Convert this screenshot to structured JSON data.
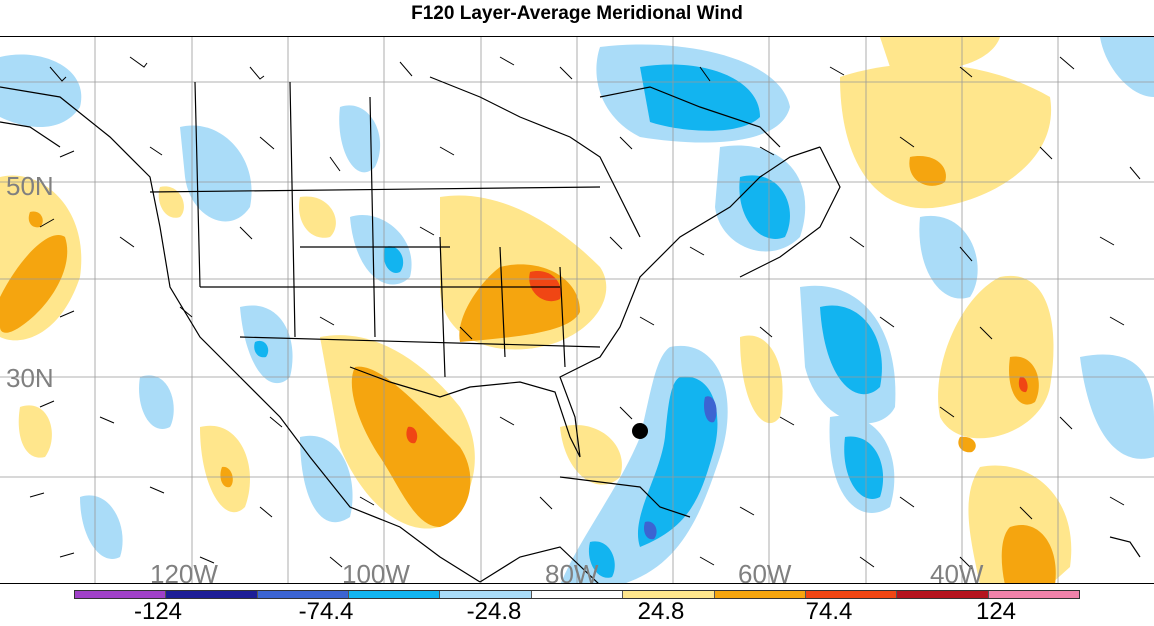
{
  "title": "F120 Layer-Average Meridional Wind",
  "map": {
    "lat_labels": [
      "50N",
      "30N"
    ],
    "lon_labels": [
      "120W",
      "100W",
      "80W",
      "60W",
      "40W"
    ],
    "marker": "storm-center-dot"
  },
  "colorbar": {
    "colors": [
      "#a040c8",
      "#1e1e96",
      "#3c64d2",
      "#12b4f0",
      "#aadcf8",
      "#ffffff",
      "#ffe68c",
      "#f5a50f",
      "#f04614",
      "#b4141e",
      "#f082aa"
    ],
    "labels": [
      "-124",
      "-74.4",
      "-24.8",
      "24.8",
      "74.4",
      "124"
    ]
  },
  "colors": {
    "land_outline": "#000000",
    "grid": "#999999",
    "positive_light": "#ffe68c",
    "positive_mid": "#f5a50f",
    "positive_strong": "#f04614",
    "negative_light": "#aadcf8",
    "negative_mid": "#12b4f0",
    "negative_strong": "#3c64d2"
  }
}
